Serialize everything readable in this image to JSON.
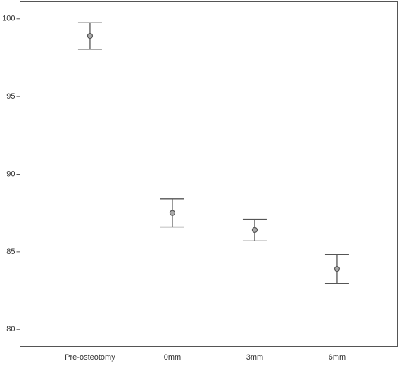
{
  "chart_data": {
    "type": "errorbar",
    "categories": [
      "Pre-osteotomy",
      "0mm",
      "3mm",
      "6mm"
    ],
    "values": [
      98.9,
      87.5,
      86.4,
      83.9
    ],
    "errors": [
      0.85,
      0.9,
      0.7,
      0.93
    ],
    "color": "#555555",
    "ylim": [
      78.9,
      101.1
    ],
    "yticks": [
      80,
      85,
      90,
      95,
      100
    ]
  }
}
